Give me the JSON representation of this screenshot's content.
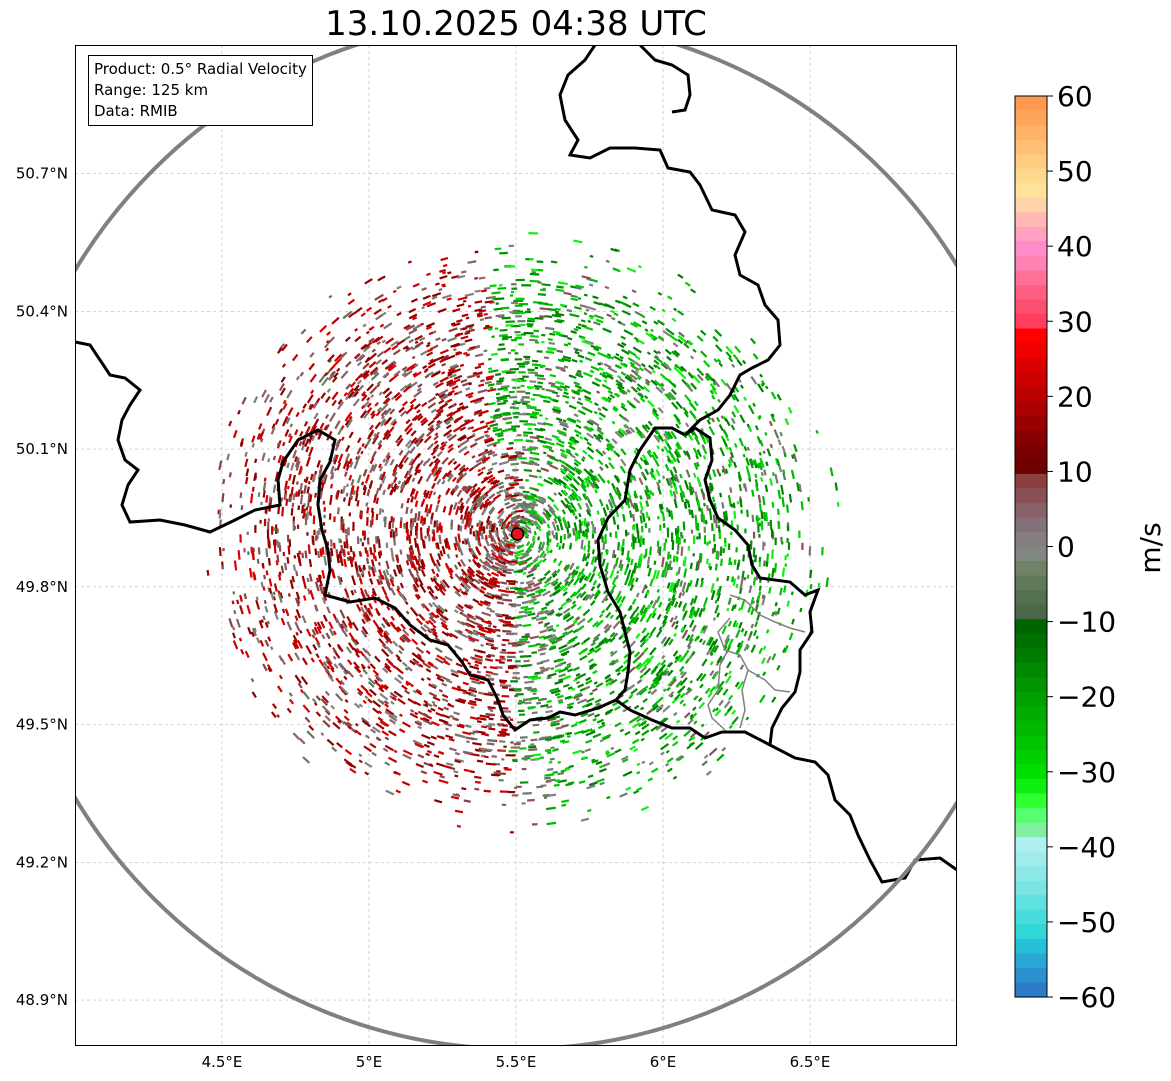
{
  "title": "13.10.2025 04:38 UTC",
  "info": {
    "product": "Product: 0.5° Radial Velocity",
    "range": "Range: 125 km",
    "data": "Data: RMIB"
  },
  "map": {
    "lon_range": [
      4.0,
      7.0
    ],
    "lat_range": [
      48.8,
      50.98
    ],
    "radar_site": {
      "lon": 5.505,
      "lat": 49.915,
      "color": "#e8141e"
    },
    "range_ring_km": 125,
    "x_ticks": [
      {
        "value": 4.5,
        "label": "4.5°E"
      },
      {
        "value": 5.0,
        "label": "5°E"
      },
      {
        "value": 5.5,
        "label": "5.5°E"
      },
      {
        "value": 6.0,
        "label": "6°E"
      },
      {
        "value": 6.5,
        "label": "6.5°E"
      }
    ],
    "y_ticks": [
      {
        "value": 50.7,
        "label": "50.7°N"
      },
      {
        "value": 50.4,
        "label": "50.4°N"
      },
      {
        "value": 50.1,
        "label": "50.1°N"
      },
      {
        "value": 49.8,
        "label": "49.8°N"
      },
      {
        "value": 49.5,
        "label": "49.5°N"
      },
      {
        "value": 49.2,
        "label": "49.2°N"
      },
      {
        "value": 48.9,
        "label": "48.9°N"
      }
    ]
  },
  "colorbar": {
    "unit": "m/s",
    "min": -60,
    "max": 60,
    "ticks": [
      {
        "value": 60,
        "label": "60"
      },
      {
        "value": 50,
        "label": "50"
      },
      {
        "value": 40,
        "label": "40"
      },
      {
        "value": 30,
        "label": "30"
      },
      {
        "value": 20,
        "label": "20"
      },
      {
        "value": 10,
        "label": "10"
      },
      {
        "value": 0,
        "label": "0"
      },
      {
        "value": -10,
        "label": "−10"
      },
      {
        "value": -20,
        "label": "−20"
      },
      {
        "value": -30,
        "label": "−30"
      },
      {
        "value": -40,
        "label": "−40"
      },
      {
        "value": -50,
        "label": "−50"
      },
      {
        "value": -60,
        "label": "−60"
      }
    ],
    "stops": [
      [
        "#ff9a50",
        "#ffa55a",
        "#ffb266",
        "#ffbf72",
        "#ffcc80",
        "#ffd890",
        "#ffe29c",
        "#ffd3a8",
        "#ffb9b4",
        "#ffa0c0",
        "#ff8cc8",
        "#ff82b4",
        "#ff7096",
        "#ff5f82",
        "#ff4f70",
        "#ff3e5f"
      ],
      [
        "#ff0000",
        "#ee0000",
        "#dd0000",
        "#cc0000",
        "#bb0000",
        "#aa0000",
        "#990000",
        "#880000",
        "#780000",
        "#6e0000"
      ],
      [
        "#8b4040",
        "#8a5058",
        "#88606a",
        "#86707a",
        "#857f80",
        "#808780",
        "#6f8268",
        "#60785a",
        "#557050",
        "#4a6848"
      ],
      [
        "#006400",
        "#007000",
        "#007c00",
        "#008800",
        "#009400",
        "#00a000",
        "#00ac00",
        "#00b800",
        "#00c400",
        "#00d000"
      ],
      [
        "#00e000",
        "#10f010",
        "#30ff30",
        "#55ff70",
        "#80f0a0",
        "#b0f0f0",
        "#a0ecec",
        "#8ee8e8",
        "#78e4e4",
        "#60e0e0"
      ],
      [
        "#48dcdc",
        "#30d8d8",
        "#28c0d8",
        "#2aa6d4",
        "#2a90d0",
        "#2a7cc8"
      ]
    ]
  },
  "colors": {
    "border": "#000000",
    "minor_border": "#808080",
    "ring": "#808080",
    "grid": "#bbbbbb",
    "green_echo": "#00b800",
    "red_echo": "#aa0000",
    "gray_echo": "#808080"
  }
}
